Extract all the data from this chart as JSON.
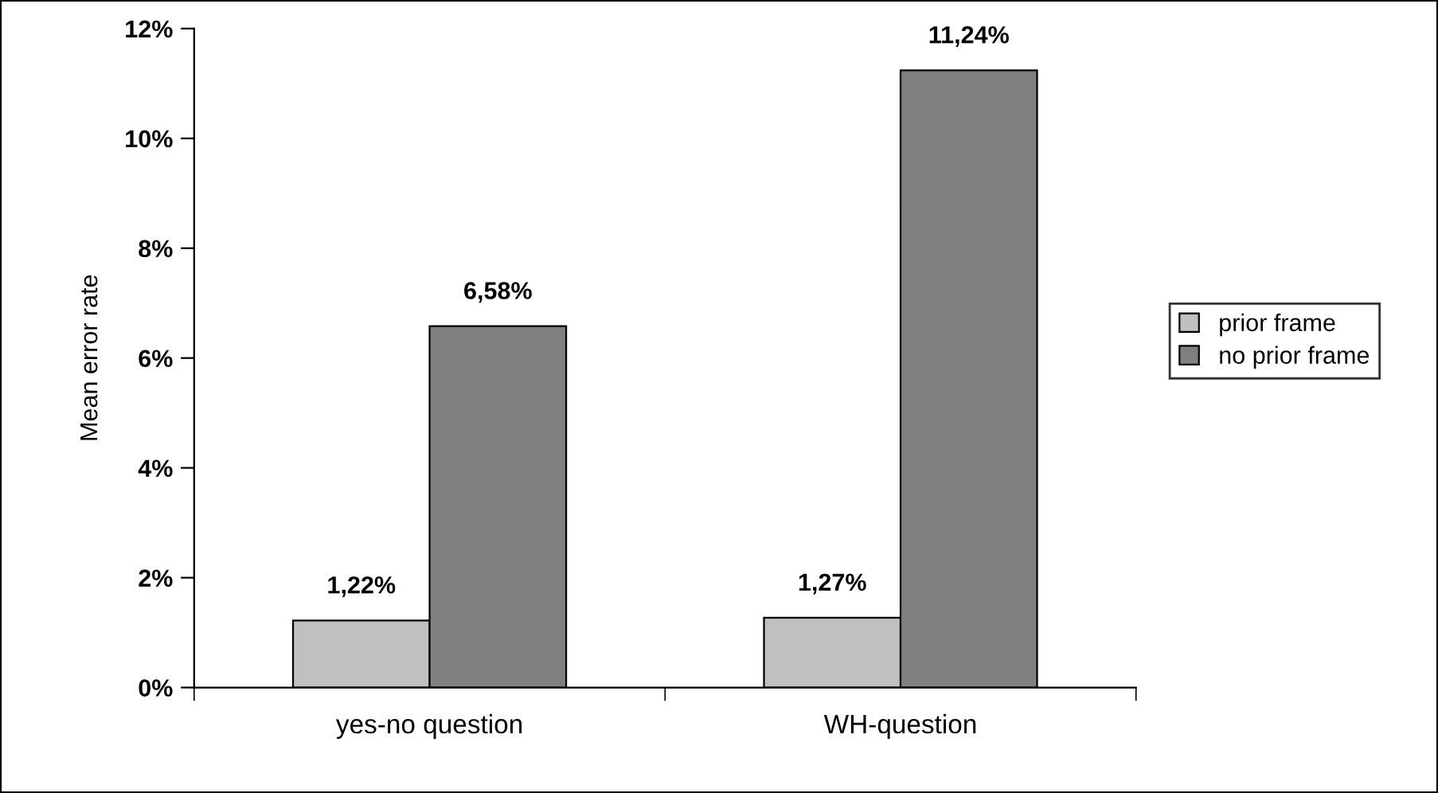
{
  "chart_data": {
    "type": "bar",
    "ylabel": "Mean error rate",
    "categories": [
      "yes-no question",
      "WH-question"
    ],
    "series": [
      {
        "name": "prior frame",
        "color": "#c0c0c0",
        "values": [
          1.22,
          1.27
        ],
        "value_labels": [
          "1,22%",
          "1,27%"
        ]
      },
      {
        "name": "no prior frame",
        "color": "#808080",
        "values": [
          6.58,
          11.24
        ],
        "value_labels": [
          "6,58%",
          "11,24%"
        ]
      }
    ],
    "ylim": [
      0,
      12
    ],
    "yticks": [
      {
        "value": 0,
        "label": "0%"
      },
      {
        "value": 2,
        "label": "2%"
      },
      {
        "value": 4,
        "label": "4%"
      },
      {
        "value": 6,
        "label": "6%"
      },
      {
        "value": 8,
        "label": "8%"
      },
      {
        "value": 10,
        "label": "10%"
      },
      {
        "value": 12,
        "label": "12%"
      }
    ],
    "grid": false,
    "legend": "right"
  }
}
